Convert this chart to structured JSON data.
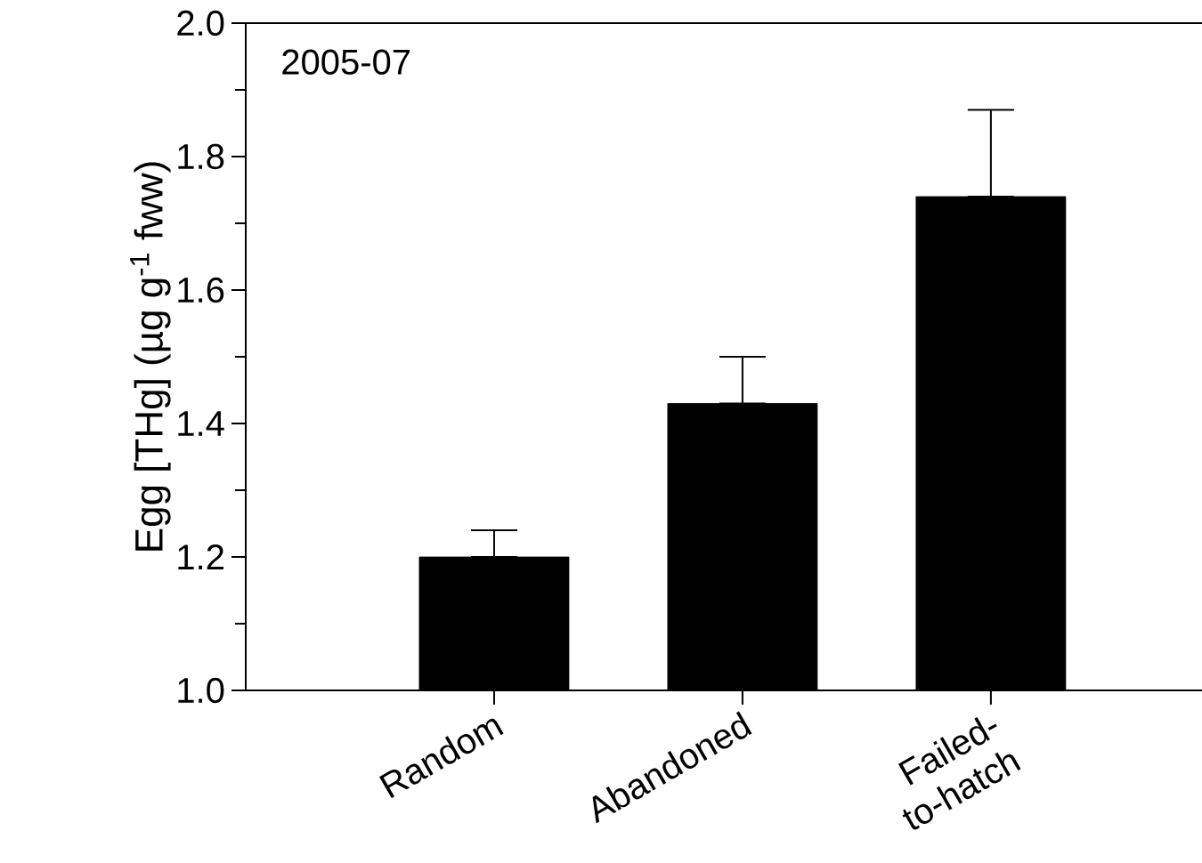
{
  "chart_data": {
    "type": "bar",
    "ylabel": "Egg [THg] (µg g$^{-1}$ fww)",
    "annotations": [
      "2005-07"
    ],
    "categories": [
      "Random",
      "Abandoned",
      "Failed-to-hatch"
    ],
    "values": [
      1.2,
      1.43,
      1.74
    ],
    "errors": [
      [
        1.2,
        1.24
      ],
      [
        1.43,
        1.5
      ],
      [
        1.74,
        1.87
      ]
    ],
    "color": "#000000",
    "ylim": [
      1.0,
      2.0
    ],
    "yticks": [
      {
        "value": 1.0,
        "label": "1.0"
      },
      {
        "value": 1.2,
        "label": "1.2"
      },
      {
        "value": 1.4,
        "label": "1.4"
      },
      {
        "value": 1.6,
        "label": "1.6"
      },
      {
        "value": 1.8,
        "label": "1.8"
      },
      {
        "value": 2.0,
        "label": "2.0"
      }
    ],
    "grid": false
  }
}
